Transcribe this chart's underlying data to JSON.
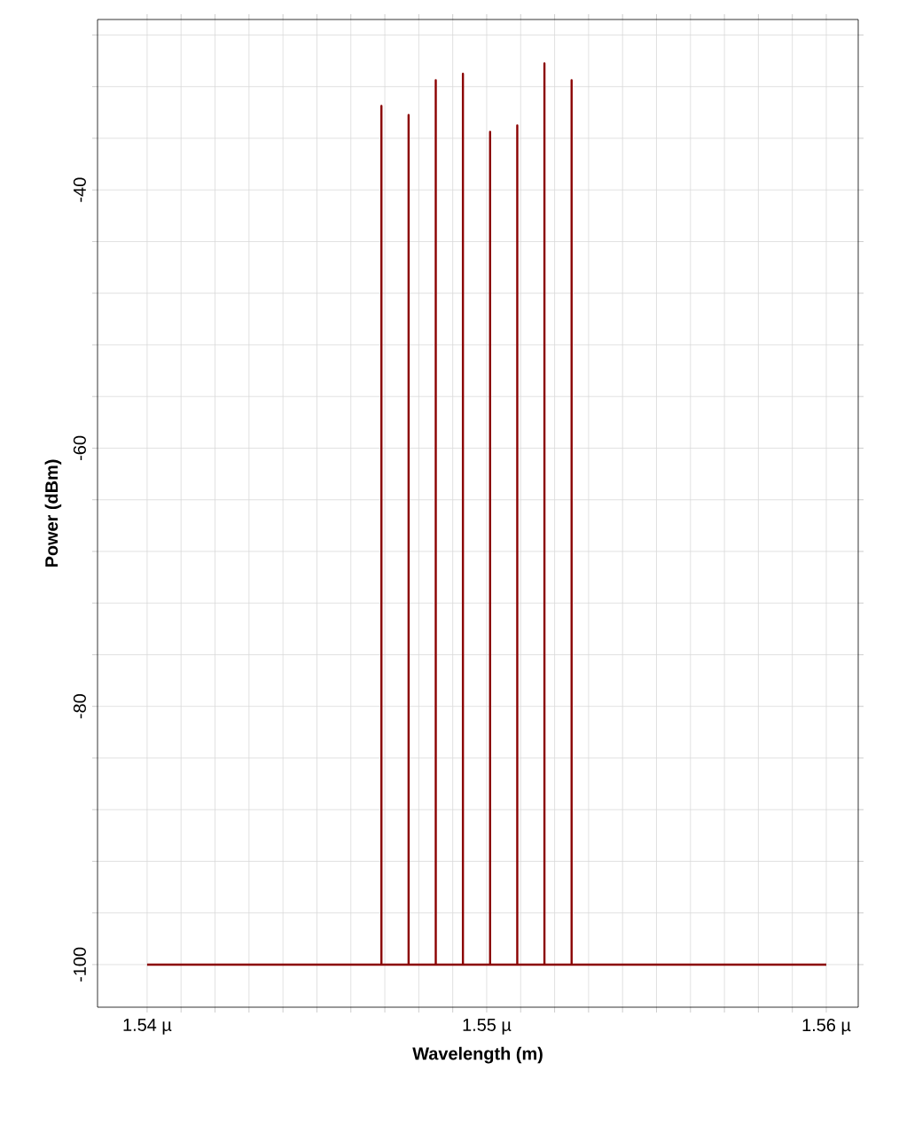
{
  "chart_data": {
    "type": "line",
    "xlabel": "Wavelength (m)",
    "ylabel": "Power (dBm)",
    "xlim": [
      1.53854,
      1.56094
    ],
    "ylim": [
      -103.3,
      -26.8
    ],
    "xticks": [
      {
        "value": 1.54,
        "label": "1.54 µ"
      },
      {
        "value": 1.541,
        "label": null
      },
      {
        "value": 1.542,
        "label": null
      },
      {
        "value": 1.543,
        "label": null
      },
      {
        "value": 1.544,
        "label": null
      },
      {
        "value": 1.545,
        "label": null
      },
      {
        "value": 1.546,
        "label": null
      },
      {
        "value": 1.547,
        "label": null
      },
      {
        "value": 1.548,
        "label": null
      },
      {
        "value": 1.549,
        "label": null
      },
      {
        "value": 1.55,
        "label": "1.55 µ"
      },
      {
        "value": 1.551,
        "label": null
      },
      {
        "value": 1.552,
        "label": null
      },
      {
        "value": 1.553,
        "label": null
      },
      {
        "value": 1.554,
        "label": null
      },
      {
        "value": 1.555,
        "label": null
      },
      {
        "value": 1.556,
        "label": null
      },
      {
        "value": 1.557,
        "label": null
      },
      {
        "value": 1.558,
        "label": null
      },
      {
        "value": 1.559,
        "label": null
      },
      {
        "value": 1.56,
        "label": "1.56 µ"
      }
    ],
    "yticks": [
      -100,
      {
        "value": -96,
        "label": null
      },
      {
        "value": -92,
        "label": null
      },
      {
        "value": -88,
        "label": null
      },
      {
        "value": -84,
        "label": null
      },
      -80,
      {
        "value": -76,
        "label": null
      },
      {
        "value": -72,
        "label": null
      },
      {
        "value": -68,
        "label": null
      },
      {
        "value": -64,
        "label": null
      },
      -60,
      {
        "value": -56,
        "label": null
      },
      {
        "value": -52,
        "label": null
      },
      {
        "value": -48,
        "label": null
      },
      {
        "value": -44,
        "label": null
      },
      -40,
      {
        "value": -36,
        "label": null
      },
      {
        "value": -32,
        "label": null
      },
      {
        "value": -28,
        "label": null
      }
    ],
    "grid": true,
    "series": [
      {
        "color": "#8b0000",
        "x": [
          1.54,
          1.5469,
          1.5469,
          1.5469,
          1.5477,
          1.5477,
          1.5477,
          1.5485,
          1.5485,
          1.5485,
          1.5493,
          1.5493,
          1.5493,
          1.5501,
          1.5501,
          1.5501,
          1.5509,
          1.5509,
          1.5509,
          1.5517,
          1.5517,
          1.5517,
          1.5525,
          1.5525,
          1.5525,
          1.56
        ],
        "values": [
          -100,
          -100,
          -33.5,
          -100,
          -100,
          -34.2,
          -100,
          -100,
          -31.5,
          -100,
          -100,
          -31.0,
          -100,
          -100,
          -35.5,
          -100,
          -100,
          -35.0,
          -100,
          -100,
          -30.2,
          -100,
          -100,
          -31.5,
          -100,
          -100
        ]
      }
    ]
  }
}
